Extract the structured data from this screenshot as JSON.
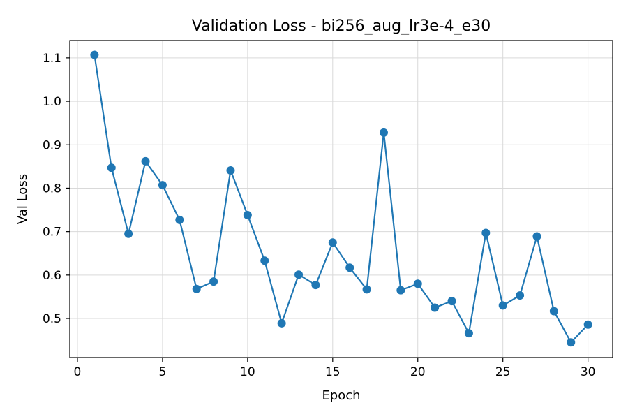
{
  "chart_data": {
    "type": "line",
    "title": "Validation Loss - bi256_aug_lr3e-4_e30",
    "xlabel": "Epoch",
    "ylabel": "Val Loss",
    "xlim": [
      -0.45,
      31.45
    ],
    "ylim": [
      0.41,
      1.14
    ],
    "xticks": [
      0,
      5,
      10,
      15,
      20,
      25,
      30
    ],
    "yticks": [
      0.5,
      0.6,
      0.7,
      0.8,
      0.9,
      1.0,
      1.1
    ],
    "ytick_labels": [
      "0.5",
      "0.6",
      "0.7",
      "0.8",
      "0.9",
      "1.0",
      "1.1"
    ],
    "grid": true,
    "series": [
      {
        "color": "#1f77b4",
        "marker": "circle",
        "x": [
          1,
          2,
          3,
          4,
          5,
          6,
          7,
          8,
          9,
          10,
          11,
          12,
          13,
          14,
          15,
          16,
          17,
          18,
          19,
          20,
          21,
          22,
          23,
          24,
          25,
          26,
          27,
          28,
          29,
          30
        ],
        "y": [
          1.107,
          0.847,
          0.695,
          0.862,
          0.807,
          0.727,
          0.568,
          0.585,
          0.841,
          0.738,
          0.633,
          0.489,
          0.601,
          0.577,
          0.675,
          0.617,
          0.567,
          0.928,
          0.565,
          0.58,
          0.525,
          0.54,
          0.466,
          0.697,
          0.53,
          0.553,
          0.689,
          0.517,
          0.445,
          0.486
        ]
      }
    ]
  }
}
